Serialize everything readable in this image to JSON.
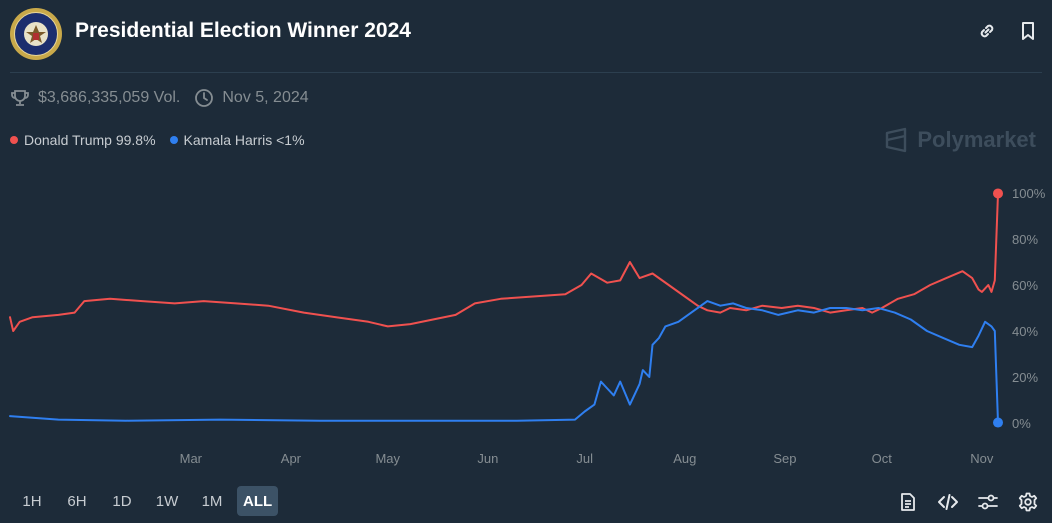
{
  "header": {
    "title": "Presidential Election Winner 2024",
    "icons": {
      "seal": "presidential-seal",
      "link": "link-icon",
      "bookmark": "bookmark-icon"
    }
  },
  "meta": {
    "volume": "$3,686,335,059 Vol.",
    "date": "Nov 5, 2024",
    "icons": {
      "volume": "trophy-icon",
      "date": "clock-icon"
    }
  },
  "legend": {
    "items": [
      {
        "label": "Donald Trump 99.8%",
        "color": "#f0514f"
      },
      {
        "label": "Kamala Harris <1%",
        "color": "#2f7ff0"
      }
    ]
  },
  "brand": "Polymarket",
  "ranges": {
    "items": [
      "1H",
      "6H",
      "1D",
      "1W",
      "1M",
      "ALL"
    ],
    "active": "ALL"
  },
  "tools": [
    "document-icon",
    "code-icon",
    "sliders-icon",
    "gear-icon"
  ],
  "colors": {
    "background": "#1d2b39",
    "trump": "#f0514f",
    "harris": "#2f7ff0",
    "axis_text": "#858d92",
    "grid": "#2c3f4f"
  },
  "chart_data": {
    "type": "line",
    "title": "",
    "xlabel": "",
    "ylabel": "",
    "x_tick_labels": [
      "Mar",
      "Apr",
      "May",
      "Jun",
      "Jul",
      "Aug",
      "Sep",
      "Oct",
      "Nov"
    ],
    "x_tick_dates": [
      "2024-03-01",
      "2024-04-01",
      "2024-05-01",
      "2024-06-01",
      "2024-07-01",
      "2024-08-01",
      "2024-09-01",
      "2024-10-01",
      "2024-11-01"
    ],
    "xlim": [
      "2024-01-05",
      "2024-11-06"
    ],
    "y_tick_labels": [
      "0%",
      "20%",
      "40%",
      "60%",
      "80%",
      "100%"
    ],
    "y_ticks": [
      0,
      20,
      40,
      60,
      80,
      100
    ],
    "ylim": [
      0,
      100
    ],
    "y_axis_side": "right",
    "legend_position": "top-left",
    "grid": false,
    "series": [
      {
        "name": "Donald Trump",
        "color": "#f0514f",
        "points": [
          [
            "2024-01-05",
            46
          ],
          [
            "2024-01-06",
            40
          ],
          [
            "2024-01-08",
            44
          ],
          [
            "2024-01-12",
            46
          ],
          [
            "2024-01-20",
            47
          ],
          [
            "2024-01-25",
            48
          ],
          [
            "2024-01-28",
            53
          ],
          [
            "2024-02-05",
            54
          ],
          [
            "2024-02-15",
            53
          ],
          [
            "2024-02-25",
            52
          ],
          [
            "2024-03-05",
            53
          ],
          [
            "2024-03-15",
            52
          ],
          [
            "2024-03-25",
            51
          ],
          [
            "2024-04-05",
            48
          ],
          [
            "2024-04-15",
            46
          ],
          [
            "2024-04-25",
            44
          ],
          [
            "2024-05-01",
            42
          ],
          [
            "2024-05-08",
            43
          ],
          [
            "2024-05-15",
            45
          ],
          [
            "2024-05-22",
            47
          ],
          [
            "2024-05-28",
            52
          ],
          [
            "2024-06-05",
            54
          ],
          [
            "2024-06-15",
            55
          ],
          [
            "2024-06-25",
            56
          ],
          [
            "2024-06-30",
            60
          ],
          [
            "2024-07-03",
            65
          ],
          [
            "2024-07-08",
            61
          ],
          [
            "2024-07-12",
            62
          ],
          [
            "2024-07-15",
            70
          ],
          [
            "2024-07-18",
            63
          ],
          [
            "2024-07-22",
            65
          ],
          [
            "2024-07-27",
            60
          ],
          [
            "2024-08-01",
            55
          ],
          [
            "2024-08-05",
            51
          ],
          [
            "2024-08-08",
            49
          ],
          [
            "2024-08-12",
            48
          ],
          [
            "2024-08-15",
            50
          ],
          [
            "2024-08-20",
            49
          ],
          [
            "2024-08-25",
            51
          ],
          [
            "2024-08-31",
            50
          ],
          [
            "2024-09-05",
            51
          ],
          [
            "2024-09-10",
            50
          ],
          [
            "2024-09-15",
            48
          ],
          [
            "2024-09-20",
            49
          ],
          [
            "2024-09-25",
            50
          ],
          [
            "2024-09-28",
            48
          ],
          [
            "2024-10-01",
            50
          ],
          [
            "2024-10-06",
            54
          ],
          [
            "2024-10-11",
            56
          ],
          [
            "2024-10-16",
            60
          ],
          [
            "2024-10-21",
            63
          ],
          [
            "2024-10-26",
            66
          ],
          [
            "2024-10-29",
            63
          ],
          [
            "2024-10-31",
            58
          ],
          [
            "2024-11-01",
            57
          ],
          [
            "2024-11-03",
            60
          ],
          [
            "2024-11-04",
            57
          ],
          [
            "2024-11-05",
            62
          ],
          [
            "2024-11-06",
            99.8
          ]
        ]
      },
      {
        "name": "Kamala Harris",
        "color": "#2f7ff0",
        "points": [
          [
            "2024-01-05",
            3
          ],
          [
            "2024-01-20",
            1.5
          ],
          [
            "2024-02-10",
            1
          ],
          [
            "2024-03-10",
            1.5
          ],
          [
            "2024-04-10",
            1
          ],
          [
            "2024-05-10",
            1
          ],
          [
            "2024-06-10",
            1
          ],
          [
            "2024-06-28",
            1.5
          ],
          [
            "2024-07-01",
            5
          ],
          [
            "2024-07-04",
            8
          ],
          [
            "2024-07-06",
            18
          ],
          [
            "2024-07-08",
            15
          ],
          [
            "2024-07-10",
            12
          ],
          [
            "2024-07-12",
            18
          ],
          [
            "2024-07-15",
            8
          ],
          [
            "2024-07-18",
            17
          ],
          [
            "2024-07-19",
            23
          ],
          [
            "2024-07-21",
            20
          ],
          [
            "2024-07-22",
            34
          ],
          [
            "2024-07-24",
            37
          ],
          [
            "2024-07-26",
            42
          ],
          [
            "2024-07-30",
            44
          ],
          [
            "2024-08-03",
            48
          ],
          [
            "2024-08-08",
            53
          ],
          [
            "2024-08-12",
            51
          ],
          [
            "2024-08-16",
            52
          ],
          [
            "2024-08-20",
            50
          ],
          [
            "2024-08-25",
            49
          ],
          [
            "2024-08-30",
            47
          ],
          [
            "2024-09-05",
            49
          ],
          [
            "2024-09-10",
            48
          ],
          [
            "2024-09-15",
            50
          ],
          [
            "2024-09-20",
            50
          ],
          [
            "2024-09-25",
            49
          ],
          [
            "2024-09-30",
            50
          ],
          [
            "2024-10-05",
            48
          ],
          [
            "2024-10-10",
            45
          ],
          [
            "2024-10-15",
            40
          ],
          [
            "2024-10-20",
            37
          ],
          [
            "2024-10-25",
            34
          ],
          [
            "2024-10-29",
            33
          ],
          [
            "2024-10-31",
            38
          ],
          [
            "2024-11-02",
            44
          ],
          [
            "2024-11-04",
            42
          ],
          [
            "2024-11-05",
            40
          ],
          [
            "2024-11-06",
            0.2
          ]
        ]
      }
    ]
  }
}
